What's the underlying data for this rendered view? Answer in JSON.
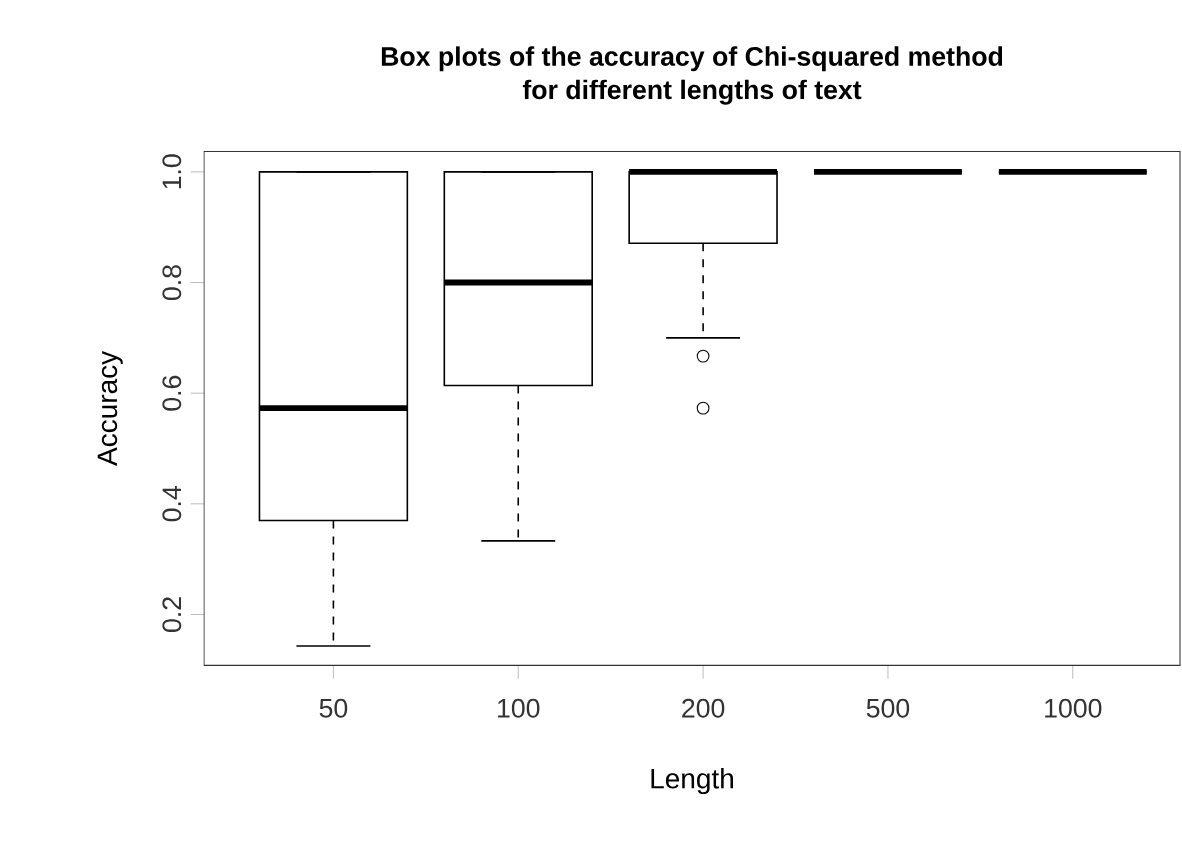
{
  "chart_data": {
    "type": "box",
    "title": "Box plots of the accuracy of Chi-squared method\nfor different lengths of text",
    "xlabel": "Length",
    "ylabel": "Accuracy",
    "categories": [
      "50",
      "100",
      "200",
      "500",
      "1000"
    ],
    "boxes": [
      {
        "low": 0.143,
        "q1": 0.37,
        "median": 0.573,
        "q3": 1.0,
        "high": 1.0
      },
      {
        "low": 0.333,
        "q1": 0.614,
        "median": 0.8,
        "q3": 1.0,
        "high": 1.0
      },
      {
        "low": 0.7,
        "q1": 0.871,
        "median": 1.0,
        "q3": 1.0,
        "high": 1.0,
        "outliers": [
          0.667,
          0.573
        ]
      },
      {
        "low": 1.0,
        "q1": 1.0,
        "median": 1.0,
        "q3": 1.0,
        "high": 1.0
      },
      {
        "low": 1.0,
        "q1": 1.0,
        "median": 1.0,
        "q3": 1.0,
        "high": 1.0
      }
    ],
    "ylim": [
      0.108,
      1.037
    ],
    "yticks": [
      0.2,
      0.4,
      0.6,
      0.8,
      {
        "value": 1.0,
        "label": "1.0"
      }
    ]
  }
}
